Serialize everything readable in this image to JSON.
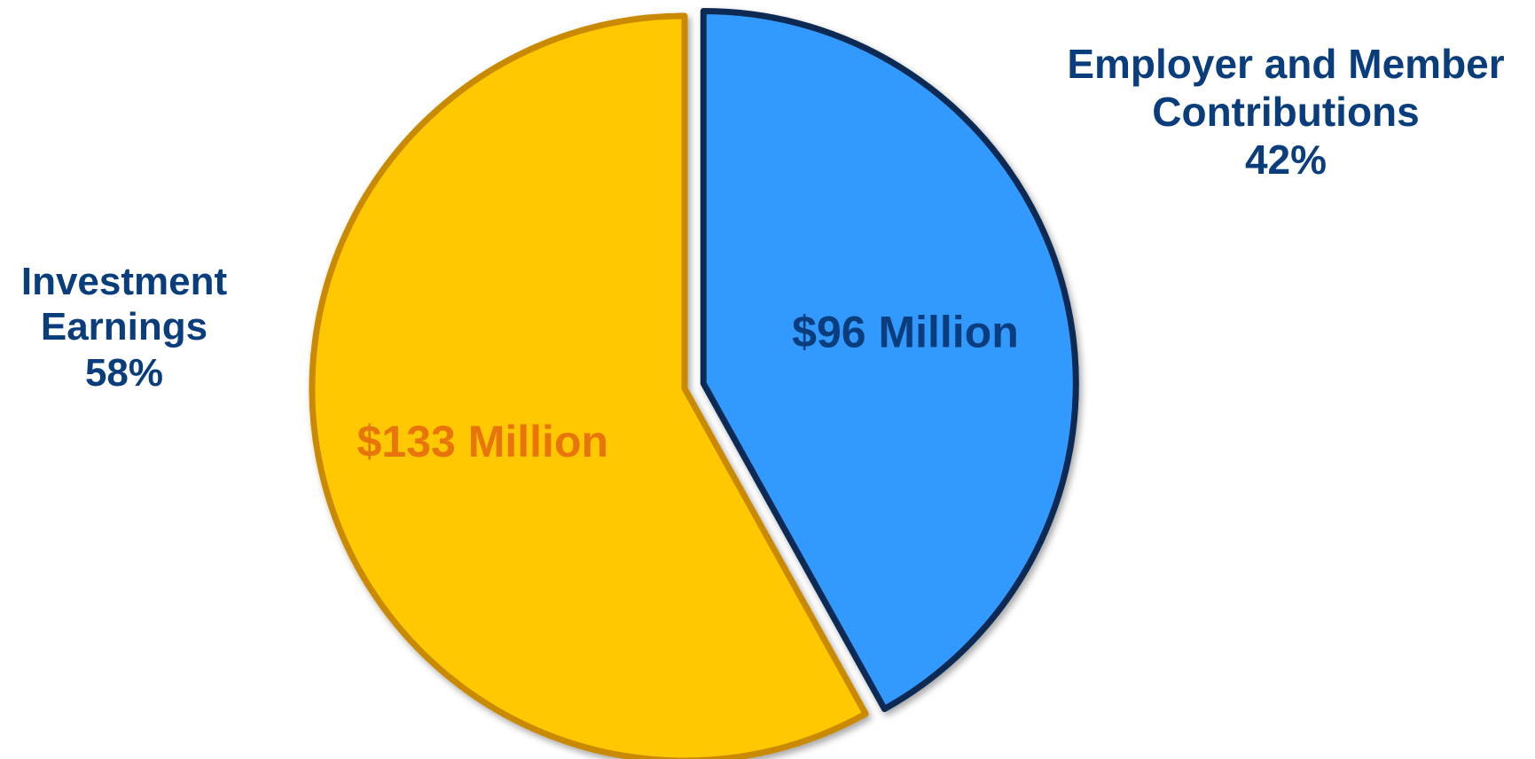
{
  "chart_data": {
    "type": "pie",
    "title": "",
    "slices": [
      {
        "category_lines": [
          "Employer and Member",
          "Contributions"
        ],
        "percent_label": "42%",
        "percent": 42,
        "value": 96,
        "value_label": "$96 Million",
        "color": "#3399ff",
        "edge_color": "#0b2a55",
        "label_color": "#0a3d7c",
        "exploded": true
      },
      {
        "category_lines": [
          "Investment",
          "Earnings"
        ],
        "percent_label": "58%",
        "percent": 58,
        "value": 133,
        "value_label": "$133 Million",
        "color": "#ffc800",
        "edge_color": "#c98a00",
        "label_color": "#e8740c",
        "exploded": false
      }
    ],
    "legend": "none",
    "category_label_color": "#0a3d7c"
  }
}
